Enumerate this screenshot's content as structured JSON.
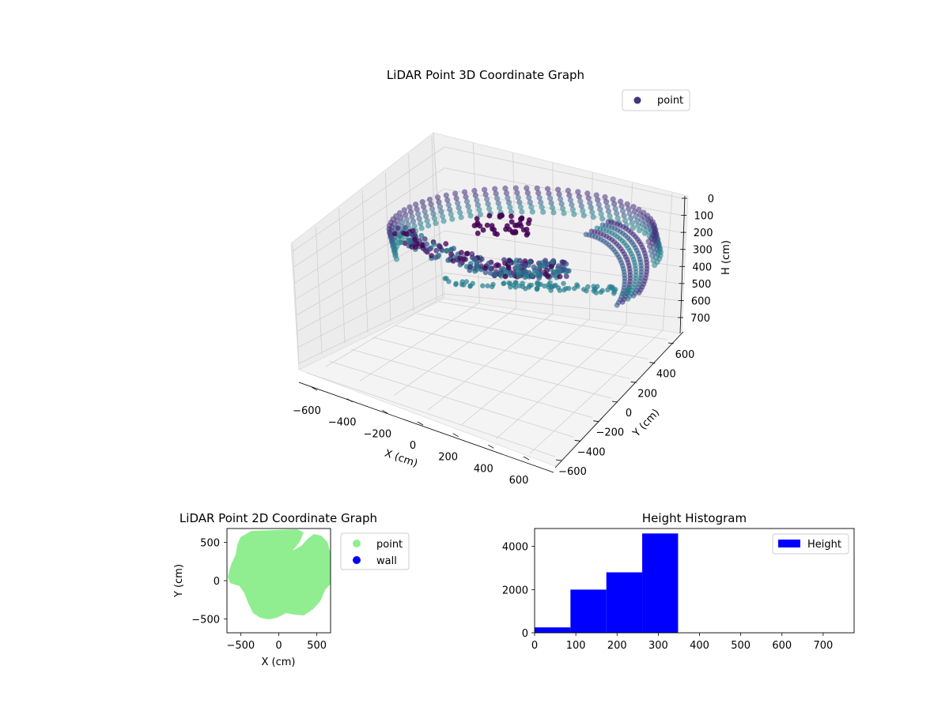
{
  "figure": {
    "background": "#ffffff"
  },
  "chart_data": [
    {
      "type": "scatter",
      "projection": "3d",
      "title": "LiDAR Point 3D Coordinate Graph",
      "xlabel": "X (cm)",
      "ylabel": "Y (cm)",
      "zlabel": "H (cm)",
      "x_ticks": [
        "−600",
        "−400",
        "−200",
        "0",
        "200",
        "400",
        "600"
      ],
      "y_ticks": [
        "−600",
        "−400",
        "−200",
        "0",
        "200",
        "400",
        "600"
      ],
      "z_ticks": [
        "0",
        "100",
        "200",
        "300",
        "400",
        "500",
        "600",
        "700"
      ],
      "xlim": [
        -650,
        650
      ],
      "ylim": [
        -650,
        650
      ],
      "zlim": [
        0,
        750
      ],
      "z_inverted": true,
      "grid": true,
      "colormap": "viridis",
      "legend": {
        "placement": "top-right",
        "entries": [
          {
            "label": "point",
            "color": "#46337e"
          }
        ]
      },
      "structure_note_colors": [
        "#440154",
        "#46327e",
        "#365c8d",
        "#277f8e",
        "#1fa187"
      ]
    },
    {
      "type": "scatter",
      "title": "LiDAR Point 2D Coordinate Graph",
      "xlabel": "X (cm)",
      "ylabel": "Y (cm)",
      "x_ticks": [
        "−500",
        "0",
        "500"
      ],
      "y_ticks": [
        "500",
        "0",
        "−500"
      ],
      "xlim": [
        -680,
        680
      ],
      "ylim": [
        -680,
        680
      ],
      "grid": false,
      "legend": {
        "placement": "outside-right",
        "entries": [
          {
            "label": "point",
            "color": "#90ee90"
          },
          {
            "label": "wall",
            "color": "#0000ff"
          }
        ]
      }
    },
    {
      "type": "bar",
      "title": "Height Histogram",
      "xlabel": "",
      "ylabel": "",
      "bin_edges": [
        0,
        87,
        174,
        261,
        348,
        435,
        522,
        609,
        696,
        783
      ],
      "values": [
        250,
        2000,
        2800,
        4600,
        0,
        0,
        0,
        0,
        0
      ],
      "x_ticks": [
        "0",
        "100",
        "200",
        "300",
        "400",
        "500",
        "600",
        "700"
      ],
      "y_ticks": [
        "0",
        "2000",
        "4000"
      ],
      "xlim": [
        0,
        775
      ],
      "ylim": [
        0,
        4830
      ],
      "color": "#0000ff",
      "legend": {
        "placement": "top-right",
        "entries": [
          {
            "label": "Height",
            "color": "#0000ff"
          }
        ]
      }
    }
  ]
}
